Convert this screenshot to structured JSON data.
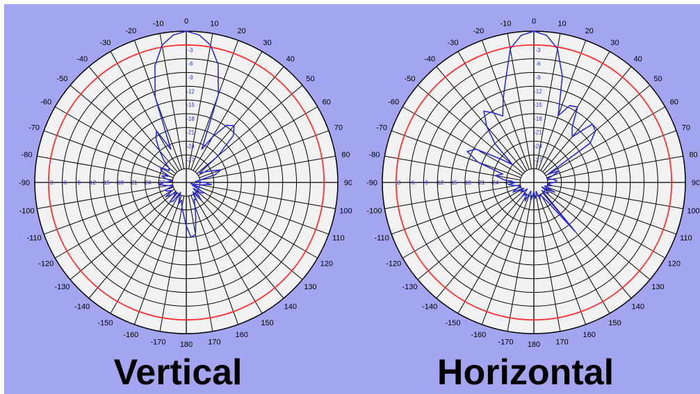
{
  "chart_data": [
    {
      "type": "polar",
      "title": "Vertical",
      "angle_labels": [
        "0",
        "10",
        "20",
        "30",
        "40",
        "50",
        "60",
        "70",
        "80",
        "90",
        "100",
        "110",
        "120",
        "130",
        "140",
        "150",
        "160",
        "170",
        "180",
        "-170",
        "-160",
        "-150",
        "-140",
        "-130",
        "-120",
        "-110",
        "-100",
        "-90",
        "-80",
        "-70",
        "-60",
        "-50",
        "-40",
        "-30",
        "-20",
        "-10"
      ],
      "radial_labels": [
        "-3",
        "-6",
        "-9",
        "-12",
        "-15",
        "-18",
        "-21",
        "-24",
        "-27"
      ],
      "radial_range_db": [
        -33,
        0
      ],
      "reference_circle_db": -3,
      "grid": true,
      "colors": {
        "pattern": "#2b2bd8",
        "reference": "#ff3030",
        "plot_bg": "#f2f2f2",
        "grid": "#000000",
        "background": "#a3a5f0"
      },
      "series": [
        {
          "angle_deg": [
            0,
            5,
            10,
            15,
            20,
            25,
            30,
            35,
            40,
            45,
            50,
            55,
            60,
            65,
            70,
            75,
            80,
            85,
            90,
            95,
            100,
            105,
            110,
            115,
            120,
            125,
            130,
            135,
            140,
            145,
            150,
            155,
            160,
            165,
            170,
            175,
            180,
            185,
            190,
            195,
            200,
            205,
            210,
            215,
            220,
            225,
            230,
            235,
            240,
            245,
            250,
            255,
            260,
            265,
            270,
            275,
            280,
            285,
            290,
            295,
            300,
            305,
            310,
            315,
            320,
            325,
            330,
            335,
            340,
            345,
            350,
            355
          ],
          "gain_db": [
            0,
            -0.7,
            -2.6,
            -6.3,
            -12.6,
            -25,
            -21.5,
            -17.8,
            -16.8,
            -18.5,
            -24,
            -29.5,
            -28.5,
            -27,
            -25,
            -26.5,
            -30,
            -31,
            -29,
            -27.5,
            -30,
            -32,
            -29.5,
            -31.5,
            -28.5,
            -29,
            -31,
            -29.5,
            -28,
            -30.5,
            -28.5,
            -29,
            -27.5,
            -25,
            -21.5,
            -21,
            -23.5,
            -26,
            -27.5,
            -29,
            -28,
            -29.5,
            -30.5,
            -28,
            -27.5,
            -30,
            -29,
            -27.5,
            -29.5,
            -28.5,
            -28,
            -30,
            -29,
            -27,
            -28,
            -30,
            -28.5,
            -27.5,
            -29,
            -27,
            -26.5,
            -28.5,
            -28,
            -26,
            -24,
            -21.5,
            -20,
            -25,
            -13.2,
            -6.6,
            -2.6,
            -0.7
          ]
        }
      ]
    },
    {
      "type": "polar",
      "title": "Horizontal",
      "angle_labels": [
        "0",
        "10",
        "20",
        "30",
        "40",
        "50",
        "60",
        "70",
        "80",
        "90",
        "100",
        "110",
        "120",
        "130",
        "140",
        "150",
        "160",
        "170",
        "180",
        "-170",
        "-160",
        "-150",
        "-140",
        "-130",
        "-120",
        "-110",
        "-100",
        "-90",
        "-80",
        "-70",
        "-60",
        "-50",
        "-40",
        "-30",
        "-20",
        "-10"
      ],
      "radial_labels": [
        "-3",
        "-6",
        "-9",
        "-12",
        "-15",
        "-18",
        "-21",
        "-24",
        "-27"
      ],
      "radial_range_db": [
        -33,
        0
      ],
      "reference_circle_db": -3,
      "grid": true,
      "colors": {
        "pattern": "#2b2bd8",
        "reference": "#ff3030",
        "plot_bg": "#f2f2f2",
        "grid": "#000000",
        "background": "#a3a5f0"
      },
      "series": [
        {
          "angle_deg": [
            0,
            5,
            10,
            15,
            20,
            25,
            30,
            35,
            40,
            45,
            50,
            55,
            60,
            65,
            70,
            75,
            80,
            85,
            90,
            95,
            100,
            105,
            110,
            115,
            120,
            125,
            130,
            135,
            140,
            145,
            150,
            155,
            160,
            165,
            170,
            175,
            180,
            185,
            190,
            195,
            200,
            205,
            210,
            215,
            220,
            225,
            230,
            235,
            240,
            245,
            250,
            255,
            260,
            265,
            270,
            275,
            280,
            285,
            290,
            295,
            300,
            305,
            310,
            315,
            320,
            325,
            330,
            335,
            340,
            345,
            350,
            355
          ],
          "gain_db": [
            0,
            -0.8,
            -3.4,
            -9,
            -17.5,
            -14.5,
            -14,
            -18.5,
            -20,
            -15,
            -15.5,
            -18,
            -29.5,
            -27,
            -28.5,
            -30,
            -29,
            -28,
            -28.5,
            -30,
            -29,
            -30,
            -30.5,
            -28,
            -31,
            -29,
            -29.5,
            -30.5,
            -19,
            -28,
            -29.5,
            -30,
            -29,
            -31,
            -30,
            -29.5,
            -31,
            -30,
            -29,
            -30.5,
            -31,
            -28.5,
            -29.5,
            -30,
            -29,
            -31,
            -30,
            -29.5,
            -30.5,
            -28,
            -29,
            -30,
            -29,
            -27.5,
            -29,
            -26.5,
            -24.5,
            -26,
            -20,
            -17,
            -18.5,
            -24,
            -27,
            -21,
            -17,
            -14,
            -15.5,
            -17,
            -13.5,
            -9.5,
            -3.4,
            -0.8
          ]
        }
      ]
    }
  ]
}
